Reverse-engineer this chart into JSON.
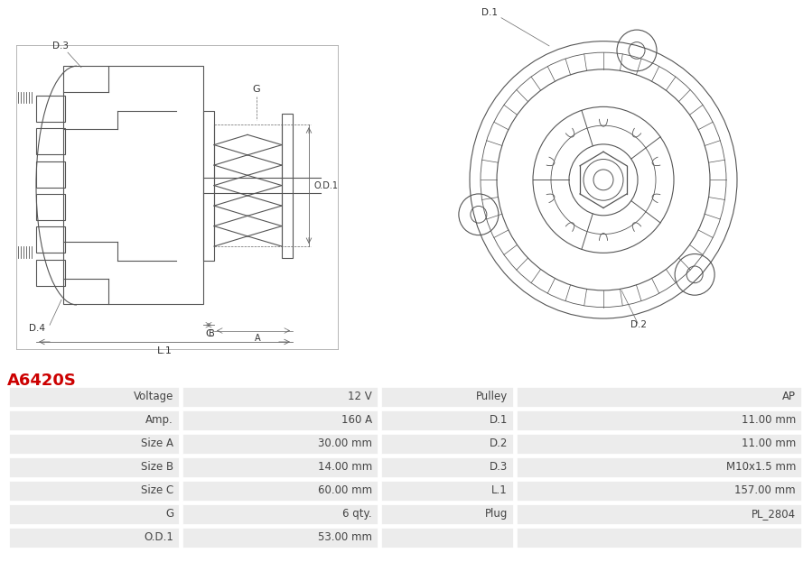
{
  "title": "A6420S",
  "title_color": "#cc0000",
  "bg_color": "#ffffff",
  "table_rows": [
    [
      "Voltage",
      "12 V",
      "Pulley",
      "AP"
    ],
    [
      "Amp.",
      "160 A",
      "D.1",
      "11.00 mm"
    ],
    [
      "Size A",
      "30.00 mm",
      "D.2",
      "11.00 mm"
    ],
    [
      "Size B",
      "14.00 mm",
      "D.3",
      "M10x1.5 mm"
    ],
    [
      "Size C",
      "60.00 mm",
      "L.1",
      "157.00 mm"
    ],
    [
      "G",
      "6 qty.",
      "Plug",
      "PL_2804"
    ],
    [
      "O.D.1",
      "53.00 mm",
      "",
      ""
    ]
  ],
  "drawing_color": "#555555",
  "label_color": "#333333",
  "dim_color": "#666666"
}
